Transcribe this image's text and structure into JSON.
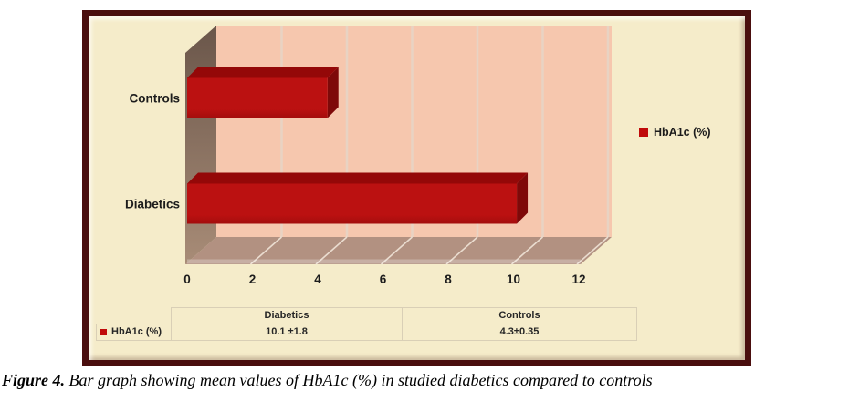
{
  "chart_data": {
    "type": "bar",
    "orientation": "horizontal",
    "style": "3d",
    "title": "",
    "categories": [
      "Controls",
      "Diabetics"
    ],
    "values": [
      4.3,
      10.1
    ],
    "errors": [
      0.35,
      1.8
    ],
    "value_labels": [
      "4.3±0.35",
      "10.1 ±1.8"
    ],
    "xlabel": "",
    "ylabel": "",
    "xlim": [
      0,
      12.2
    ],
    "xticks": [
      0,
      2,
      4,
      6,
      8,
      10,
      12
    ],
    "grid": true,
    "legend_position": "right",
    "legend": [
      "HbA1c (%)"
    ],
    "colors": {
      "bar_front": "#bb1111",
      "bar_front_dark": "#a30d0d",
      "bar_top": "#940808",
      "bar_side": "#7e0909",
      "plot_wall_bg": "#f6c7ae",
      "wall_grid": "#e8d3c3",
      "side_wall_top": "#6a564a",
      "side_wall_bottom": "#a88c77",
      "floor": "#b29181",
      "floor_line": "#f3e9dd",
      "panel_bg": "#f5ecca",
      "frame_border": "#4a0e0e",
      "axis_text": "#1c1c1c"
    }
  },
  "legend": {
    "label": "HbA1c (%)"
  },
  "table": {
    "headers": [
      "Diabetics",
      "Controls"
    ],
    "row": {
      "label": "HbA1c (%)",
      "values": [
        "10.1 ±1.8",
        "4.3±0.35"
      ]
    }
  },
  "caption": {
    "figure_label": "Figure 4.",
    "text": " Bar graph showing mean values of HbA1c (%) in studied diabetics compared to controls"
  }
}
